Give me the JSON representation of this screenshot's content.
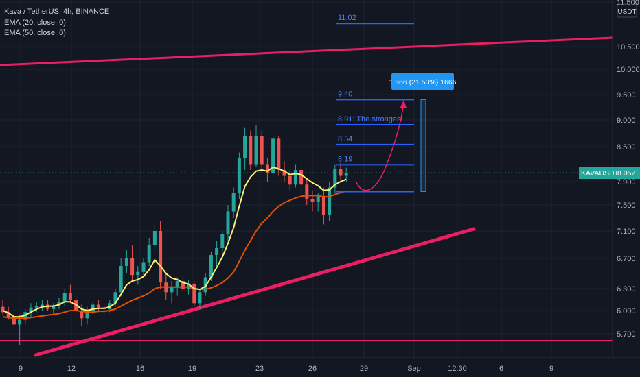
{
  "header": {
    "symbol": "Kava / TetherUS, 4h, BINANCE",
    "ema20": "EMA (20, close, 0)",
    "ema50": "EMA (50, close, 0)"
  },
  "price_axis": {
    "currency": "USDT",
    "ticks": [
      11.5,
      10.5,
      10.0,
      9.5,
      9.0,
      8.5,
      7.9,
      7.5,
      7.1,
      6.7,
      6.3,
      6.0,
      5.7
    ],
    "tick_labels": [
      "11.500",
      "10.500",
      "10.000",
      "9.500",
      "9.000",
      "8.500",
      "7.900",
      "7.500",
      "7.100",
      "6.700",
      "6.300",
      "6.000",
      "5.700"
    ],
    "current_label": "KAVAUSDT",
    "current_value": "8.052",
    "current_price": 8.052
  },
  "time_axis": {
    "labels": [
      "9",
      "12",
      "16",
      "19",
      "23",
      "26",
      "29",
      "Sep",
      "12:30",
      "6",
      "9"
    ]
  },
  "colors": {
    "bull": "#26a69a",
    "bear": "#ef5350",
    "ema20": "#fff176",
    "ema50": "#e65100",
    "trend": "#e91e63",
    "fib": "#2962ff",
    "badge": "#2196f3"
  },
  "annotations": {
    "fib_levels": [
      {
        "price": 11.02,
        "label": "11.02"
      },
      {
        "price": 9.4,
        "label": "9.40"
      },
      {
        "price": 8.91,
        "label": "8.91: The strongest"
      },
      {
        "price": 8.54,
        "label": "8.54"
      },
      {
        "price": 8.19,
        "label": "8.19"
      },
      {
        "price": 7.73,
        "label": ""
      }
    ],
    "measure_label": "1.666 (21.53%) 1666",
    "measure_from": 7.73,
    "measure_to": 9.4
  },
  "chart_data": {
    "type": "candlestick",
    "series": [
      {
        "name": "Kava / TetherUS, 4h, BINANCE",
        "values": [
          [
            6.05,
            6.14,
            5.95,
            5.98
          ],
          [
            5.98,
            6.05,
            5.88,
            5.92
          ],
          [
            5.92,
            5.98,
            5.75,
            5.82
          ],
          [
            5.82,
            5.95,
            5.55,
            5.88
          ],
          [
            5.88,
            6.02,
            5.82,
            5.98
          ],
          [
            5.98,
            6.1,
            5.92,
            6.04
          ],
          [
            6.04,
            6.12,
            5.98,
            6.06
          ],
          [
            6.06,
            6.14,
            6.0,
            6.08
          ],
          [
            6.08,
            6.15,
            6.0,
            6.02
          ],
          [
            6.02,
            6.1,
            5.96,
            6.07
          ],
          [
            6.07,
            6.17,
            6.02,
            6.12
          ],
          [
            6.12,
            6.3,
            6.05,
            6.24
          ],
          [
            6.24,
            6.35,
            6.1,
            6.14
          ],
          [
            6.14,
            6.2,
            5.95,
            6.0
          ],
          [
            6.0,
            6.08,
            5.8,
            5.9
          ],
          [
            5.9,
            6.05,
            5.82,
            6.0
          ],
          [
            6.0,
            6.12,
            5.95,
            6.08
          ],
          [
            6.08,
            6.15,
            6.0,
            6.04
          ],
          [
            6.04,
            6.1,
            5.95,
            6.02
          ],
          [
            6.02,
            6.15,
            5.98,
            6.1
          ],
          [
            6.1,
            6.3,
            6.05,
            6.25
          ],
          [
            6.25,
            6.7,
            6.2,
            6.6
          ],
          [
            6.6,
            6.82,
            6.5,
            6.7
          ],
          [
            6.7,
            6.9,
            6.4,
            6.48
          ],
          [
            6.48,
            6.6,
            6.35,
            6.52
          ],
          [
            6.52,
            6.7,
            6.45,
            6.65
          ],
          [
            6.65,
            7.0,
            6.6,
            6.9
          ],
          [
            6.9,
            7.2,
            6.8,
            7.1
          ],
          [
            7.1,
            7.25,
            6.3,
            6.38
          ],
          [
            6.38,
            6.5,
            6.15,
            6.25
          ],
          [
            6.25,
            6.4,
            6.1,
            6.32
          ],
          [
            6.32,
            6.45,
            6.2,
            6.4
          ],
          [
            6.4,
            6.48,
            6.25,
            6.3
          ],
          [
            6.3,
            6.42,
            6.22,
            6.36
          ],
          [
            6.36,
            6.4,
            6.05,
            6.1
          ],
          [
            6.1,
            6.3,
            6.02,
            6.25
          ],
          [
            6.25,
            6.5,
            6.2,
            6.45
          ],
          [
            6.45,
            6.8,
            6.4,
            6.75
          ],
          [
            6.75,
            6.95,
            6.6,
            6.85
          ],
          [
            6.85,
            7.1,
            6.7,
            7.05
          ],
          [
            7.05,
            7.5,
            6.95,
            7.4
          ],
          [
            7.4,
            7.8,
            7.3,
            7.7
          ],
          [
            7.7,
            8.4,
            7.6,
            8.3
          ],
          [
            8.3,
            8.85,
            8.1,
            8.7
          ],
          [
            8.7,
            8.8,
            8.1,
            8.2
          ],
          [
            8.2,
            8.9,
            8.15,
            8.7
          ],
          [
            8.7,
            8.8,
            8.1,
            8.2
          ],
          [
            8.2,
            8.3,
            7.9,
            8.05
          ],
          [
            8.05,
            8.75,
            8.0,
            8.65
          ],
          [
            8.65,
            8.7,
            8.0,
            8.1
          ],
          [
            8.1,
            8.25,
            7.9,
            8.0
          ],
          [
            8.0,
            8.1,
            7.75,
            7.85
          ],
          [
            7.85,
            8.2,
            7.8,
            8.1
          ],
          [
            8.1,
            8.2,
            7.7,
            7.85
          ],
          [
            7.85,
            7.95,
            7.5,
            7.6
          ],
          [
            7.6,
            7.75,
            7.4,
            7.55
          ],
          [
            7.55,
            7.7,
            7.4,
            7.65
          ],
          [
            7.65,
            7.8,
            7.2,
            7.35
          ],
          [
            7.35,
            7.9,
            7.25,
            7.8
          ],
          [
            7.8,
            8.2,
            7.7,
            8.12
          ],
          [
            8.12,
            8.22,
            7.92,
            8.0
          ],
          [
            8.0,
            8.14,
            7.9,
            8.05
          ]
        ]
      },
      {
        "name": "EMA (20, close, 0)",
        "values": [
          6.0,
          5.97,
          5.92,
          5.92,
          5.94,
          5.98,
          6.02,
          6.05,
          6.06,
          6.06,
          6.08,
          6.12,
          6.12,
          6.08,
          6.02,
          6.0,
          6.02,
          6.03,
          6.03,
          6.05,
          6.1,
          6.22,
          6.35,
          6.4,
          6.42,
          6.46,
          6.55,
          6.68,
          6.6,
          6.5,
          6.44,
          6.42,
          6.38,
          6.36,
          6.3,
          6.29,
          6.33,
          6.45,
          6.58,
          6.72,
          6.92,
          7.15,
          7.48,
          7.82,
          7.98,
          8.08,
          8.1,
          8.08,
          8.15,
          8.12,
          8.08,
          8.02,
          8.04,
          8.02,
          7.95,
          7.88,
          7.83,
          7.75,
          7.76,
          7.85,
          7.9,
          7.94
        ]
      },
      {
        "name": "EMA (50, close, 0)",
        "values": [
          5.92,
          5.91,
          5.9,
          5.9,
          5.9,
          5.91,
          5.92,
          5.93,
          5.94,
          5.95,
          5.96,
          5.98,
          6.0,
          6.0,
          5.99,
          5.98,
          5.98,
          5.99,
          5.99,
          6.0,
          6.02,
          6.06,
          6.1,
          6.14,
          6.17,
          6.2,
          6.24,
          6.3,
          6.32,
          6.32,
          6.32,
          6.32,
          6.32,
          6.32,
          6.3,
          6.29,
          6.29,
          6.31,
          6.34,
          6.38,
          6.44,
          6.52,
          6.66,
          6.82,
          6.96,
          7.1,
          7.22,
          7.3,
          7.4,
          7.48,
          7.54,
          7.58,
          7.62,
          7.65,
          7.66,
          7.66,
          7.66,
          7.64,
          7.64,
          7.68,
          7.71,
          7.74
        ]
      }
    ],
    "ylim": [
      5.45,
      11.6
    ],
    "grid": true
  }
}
